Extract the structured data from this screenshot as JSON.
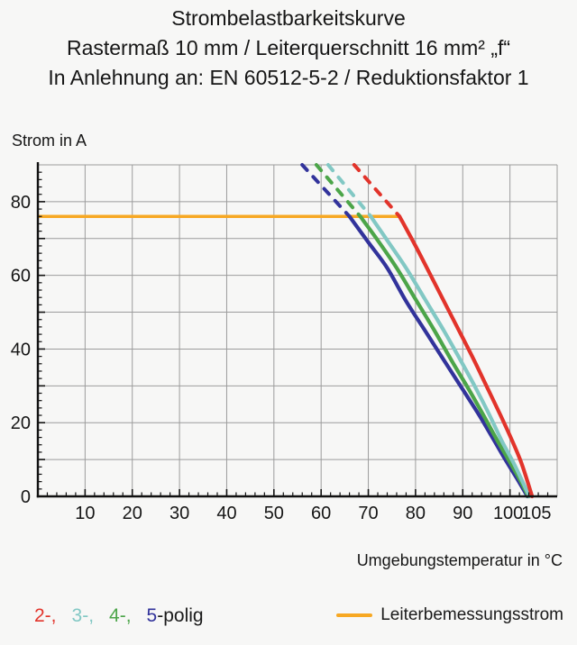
{
  "title": {
    "line1": "Strombelastbarkeitskurve",
    "line2": "Rastermaß 10 mm / Leiterquerschnitt 16 mm² „f“",
    "line3": "In Anlehnung an: EN 60512-5-2 / Reduktionsfaktor 1"
  },
  "chart_data": {
    "type": "line",
    "title": "Strombelastbarkeitskurve",
    "xlabel": "Umgebungstemperatur in °C",
    "ylabel": "Strom in A",
    "xlim": [
      0,
      110
    ],
    "ylim": [
      0,
      90
    ],
    "x_ticks": [
      10,
      20,
      30,
      40,
      50,
      60,
      70,
      80,
      90,
      100,
      105
    ],
    "y_ticks": [
      0,
      20,
      40,
      60,
      80
    ],
    "grid_step": 10,
    "minor_tick_step": 2,
    "grid_color": "#9c9c9c",
    "axis_color": "#111111",
    "rated_current": {
      "label": "Leiterbemessungsstrom",
      "value_A": 76,
      "color": "#f7a823",
      "x_start": 0,
      "x_end": 76.6
    },
    "series": [
      {
        "name": "5-polig",
        "color": "#32339b",
        "dashed": [
          [
            56,
            90
          ],
          [
            66,
            76
          ]
        ],
        "solid": [
          [
            66,
            76
          ],
          [
            70,
            69
          ],
          [
            74,
            62
          ],
          [
            78,
            53
          ],
          [
            82,
            45
          ],
          [
            86,
            37
          ],
          [
            90,
            29
          ],
          [
            93.5,
            22
          ],
          [
            96.5,
            15.5
          ],
          [
            99,
            10
          ],
          [
            101.4,
            5
          ],
          [
            103.7,
            0
          ]
        ]
      },
      {
        "name": "4-polig",
        "color": "#4ca549",
        "dashed": [
          [
            59,
            90
          ],
          [
            68.3,
            76
          ]
        ],
        "solid": [
          [
            68.3,
            76
          ],
          [
            72,
            69.5
          ],
          [
            76,
            62
          ],
          [
            80,
            53.5
          ],
          [
            84,
            45
          ],
          [
            87.8,
            36.5
          ],
          [
            91.3,
            29
          ],
          [
            94.4,
            22
          ],
          [
            97.4,
            15
          ],
          [
            99.9,
            9.5
          ],
          [
            101.9,
            5
          ],
          [
            103.9,
            0
          ]
        ]
      },
      {
        "name": "3-polig",
        "color": "#82c8c4",
        "dashed": [
          [
            61.5,
            90
          ],
          [
            70.5,
            76
          ]
        ],
        "solid": [
          [
            70.5,
            76
          ],
          [
            74,
            69.5
          ],
          [
            78,
            62
          ],
          [
            82,
            53.5
          ],
          [
            86,
            45
          ],
          [
            89.5,
            37
          ],
          [
            92.5,
            30
          ],
          [
            95.5,
            22.5
          ],
          [
            98.3,
            15
          ],
          [
            100.6,
            9.5
          ],
          [
            102.3,
            5
          ],
          [
            104.1,
            0
          ]
        ]
      },
      {
        "name": "2-polig",
        "color": "#e2342b",
        "dashed": [
          [
            67,
            90
          ],
          [
            76.6,
            76
          ]
        ],
        "solid": [
          [
            76.6,
            76
          ],
          [
            80,
            68
          ],
          [
            84,
            58
          ],
          [
            88,
            48
          ],
          [
            92,
            38
          ],
          [
            95,
            30
          ],
          [
            98,
            22
          ],
          [
            100.5,
            15
          ],
          [
            102.3,
            9.5
          ],
          [
            103.6,
            4.5
          ],
          [
            104.7,
            0
          ]
        ]
      }
    ]
  },
  "legend": {
    "poles": [
      {
        "text": "2-,",
        "color": "#e2342b",
        "gap": true
      },
      {
        "text": "3-,",
        "color": "#82c8c4",
        "gap": true
      },
      {
        "text": "4-,",
        "color": "#4ca549",
        "gap": true
      },
      {
        "text": "5",
        "color": "#32339b",
        "gap": false
      },
      {
        "text": "-polig",
        "color": "#1a1a1a",
        "gap": false
      }
    ],
    "rated_label": "Leiterbemessungsstrom"
  }
}
